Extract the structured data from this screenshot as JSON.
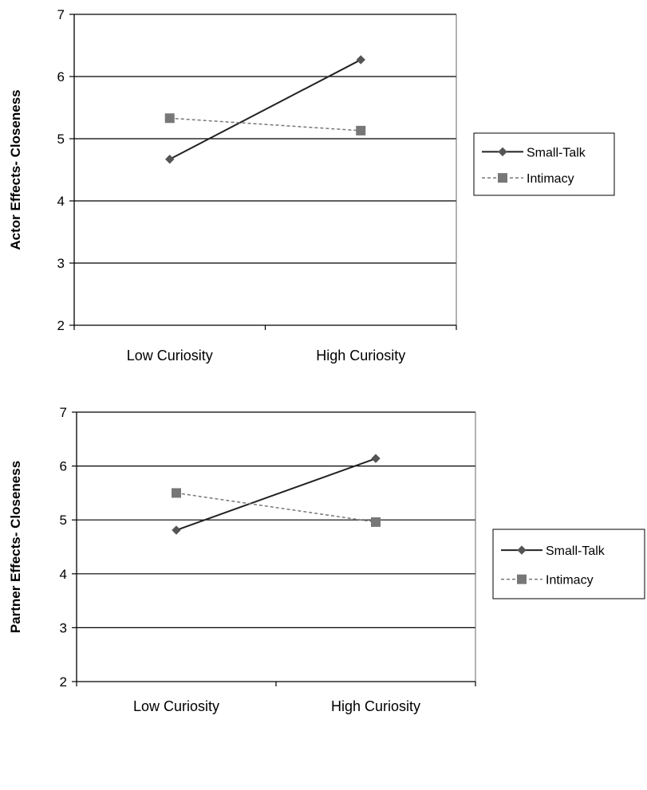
{
  "colors": {
    "small_talk": "#555555",
    "intimacy": "#777777",
    "grid": "#000000",
    "frame": "#666666"
  },
  "chart_data": [
    {
      "type": "line",
      "title": "",
      "xlabel": "",
      "ylabel": "Actor Effects- Closeness",
      "categories": [
        "Low Curiosity",
        "High Curiosity"
      ],
      "ylim": [
        2,
        7
      ],
      "yticks": [
        "2",
        "3",
        "4",
        "5",
        "6",
        "7"
      ],
      "grid": true,
      "legend": "right",
      "series": [
        {
          "name": "Small-Talk",
          "values": [
            4.67,
            6.27
          ],
          "marker": "diamond",
          "line": "solid"
        },
        {
          "name": "Intimacy",
          "values": [
            5.33,
            5.13
          ],
          "marker": "square",
          "line": "dashed"
        }
      ]
    },
    {
      "type": "line",
      "title": "",
      "xlabel": "",
      "ylabel": "Partner Effects- Closeness",
      "categories": [
        "Low Curiosity",
        "High Curiosity"
      ],
      "ylim": [
        2,
        7
      ],
      "yticks": [
        "2",
        "3",
        "4",
        "5",
        "6",
        "7"
      ],
      "grid": true,
      "legend": "right",
      "series": [
        {
          "name": "Small-Talk",
          "values": [
            4.81,
            6.14
          ],
          "marker": "diamond",
          "line": "solid"
        },
        {
          "name": "Intimacy",
          "values": [
            5.5,
            4.96
          ],
          "marker": "square",
          "line": "dashed"
        }
      ]
    }
  ]
}
